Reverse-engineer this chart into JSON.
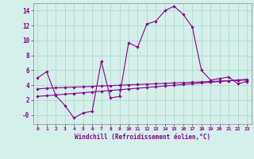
{
  "xlabel": "Windchill (Refroidissement éolien,°C)",
  "xlim": [
    -0.5,
    23.5
  ],
  "ylim": [
    -1.2,
    15.0
  ],
  "yticks": [
    0,
    2,
    4,
    6,
    8,
    10,
    12,
    14
  ],
  "ytick_labels": [
    "-0",
    "2",
    "4",
    "6",
    "8",
    "10",
    "12",
    "14"
  ],
  "xticks": [
    0,
    1,
    2,
    3,
    4,
    5,
    6,
    7,
    8,
    9,
    10,
    11,
    12,
    13,
    14,
    15,
    16,
    17,
    18,
    19,
    20,
    21,
    22,
    23
  ],
  "background_color": "#d5efeb",
  "grid_color": "#b0d8cc",
  "line_color": "#880088",
  "line1_x": [
    0,
    1,
    2,
    3,
    4,
    5,
    6,
    7,
    8,
    9,
    10,
    11,
    12,
    13,
    14,
    15,
    16,
    17,
    18,
    19,
    20,
    21,
    22,
    23
  ],
  "line1_y": [
    5.0,
    5.8,
    2.6,
    1.3,
    -0.4,
    0.3,
    0.5,
    7.2,
    2.3,
    2.5,
    9.7,
    9.1,
    12.2,
    12.6,
    14.0,
    14.6,
    13.5,
    11.8,
    6.0,
    4.7,
    4.9,
    5.1,
    4.2,
    4.5
  ],
  "line2_x": [
    0,
    1,
    2,
    3,
    4,
    5,
    6,
    7,
    8,
    9,
    10,
    11,
    12,
    13,
    14,
    15,
    16,
    17,
    18,
    19,
    20,
    21,
    22,
    23
  ],
  "line2_y": [
    3.5,
    3.6,
    3.65,
    3.7,
    3.75,
    3.8,
    3.85,
    3.9,
    3.95,
    4.0,
    4.05,
    4.1,
    4.15,
    4.2,
    4.25,
    4.3,
    4.35,
    4.4,
    4.45,
    4.5,
    4.55,
    4.6,
    4.65,
    4.7
  ],
  "line3_x": [
    0,
    1,
    2,
    3,
    4,
    5,
    6,
    7,
    8,
    9,
    10,
    11,
    12,
    13,
    14,
    15,
    16,
    17,
    18,
    19,
    20,
    21,
    22,
    23
  ],
  "line3_y": [
    2.5,
    2.6,
    2.7,
    2.8,
    2.9,
    3.0,
    3.1,
    3.2,
    3.3,
    3.4,
    3.5,
    3.6,
    3.7,
    3.8,
    3.9,
    4.0,
    4.1,
    4.2,
    4.3,
    4.4,
    4.5,
    4.6,
    4.7,
    4.8
  ]
}
